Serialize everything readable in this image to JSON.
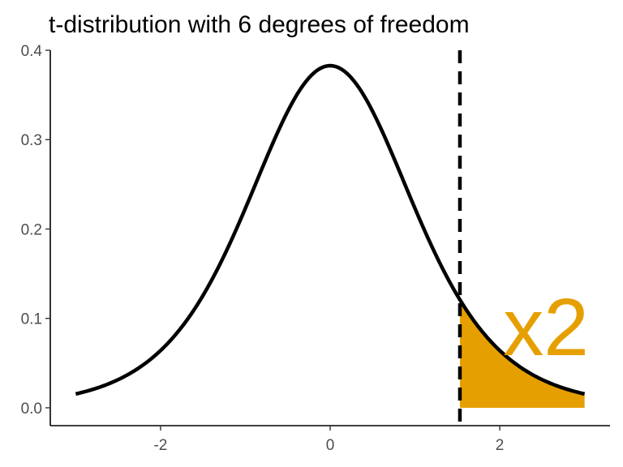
{
  "chart_data": {
    "type": "line",
    "title": "t-distribution with 6 degrees of freedom",
    "degrees_of_freedom": 6,
    "x_range": [
      -3,
      3
    ],
    "xlim": [
      -3.3,
      3.3
    ],
    "ylim": [
      -0.02,
      0.4
    ],
    "x_ticks": [
      -2,
      0,
      2
    ],
    "x_tick_labels": [
      "-2",
      "0",
      "2"
    ],
    "y_ticks": [
      0.0,
      0.1,
      0.2,
      0.3,
      0.4
    ],
    "y_tick_labels": [
      "0.0",
      "0.1",
      "0.2",
      "0.3",
      "0.4"
    ],
    "critical_value": 1.53,
    "shaded_region": [
      1.53,
      3
    ],
    "annotation": "x2",
    "colors": {
      "curve": "#000000",
      "shade": "#E69F00",
      "annotation": "#E69F00"
    },
    "grid": false,
    "legend": "none"
  }
}
